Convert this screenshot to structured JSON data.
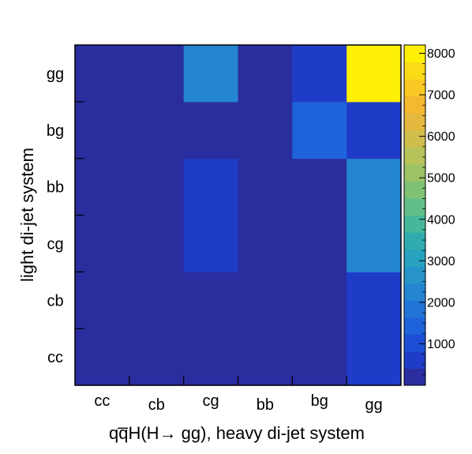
{
  "chart_data": {
    "type": "heatmap",
    "title": "",
    "xlabel": "qq̅H(H→ gg), heavy di-jet system",
    "ylabel": "light di-jet system",
    "x_categories": [
      "cc",
      "cb",
      "cg",
      "bb",
      "bg",
      "gg"
    ],
    "y_categories": [
      "cc",
      "cb",
      "cg",
      "bb",
      "bg",
      "gg"
    ],
    "values": [
      [
        0,
        0,
        0,
        0,
        0,
        500
      ],
      [
        0,
        0,
        0,
        0,
        0,
        500
      ],
      [
        0,
        0,
        600,
        0,
        0,
        2400
      ],
      [
        0,
        0,
        600,
        0,
        0,
        2100
      ],
      [
        0,
        0,
        0,
        0,
        1500,
        650
      ],
      [
        0,
        0,
        2300,
        0,
        800,
        8200
      ]
    ],
    "colorbar": {
      "range": [
        0,
        8200
      ],
      "ticks": [
        "1000",
        "2000",
        "3000",
        "4000",
        "5000",
        "6000",
        "7000",
        "8000"
      ],
      "colors": [
        "#2a2d9e",
        "#1f3cc8",
        "#1c4fd6",
        "#1f63da",
        "#2175d6",
        "#2485d0",
        "#2694c8",
        "#28a2bf",
        "#31acae",
        "#47b79a",
        "#62be87",
        "#7fc276",
        "#9cc366",
        "#b7c259",
        "#cfbe4c",
        "#e5b83f",
        "#f5b831",
        "#f9c824",
        "#fbdb16",
        "#fdf006"
      ]
    }
  }
}
